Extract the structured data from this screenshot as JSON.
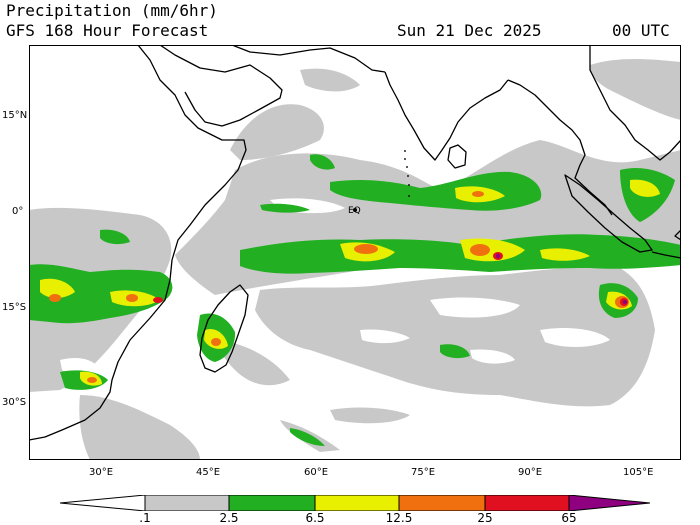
{
  "header": {
    "title": "Precipitation (mm/6hr)",
    "subtitle": "GFS 168 Hour Forecast",
    "date": "Sun 21 Dec 2025",
    "time": "00 UTC"
  },
  "map": {
    "region": "Indian Ocean",
    "lon_range": [
      20,
      110
    ],
    "lat_range": [
      -40,
      25
    ],
    "lat_labels": [
      "15°N",
      "0°",
      "15°S",
      "30°S"
    ],
    "lon_labels": [
      "30°E",
      "45°E",
      "60°E",
      "75°E",
      "90°E",
      "105°E"
    ],
    "eq_label": "EQ",
    "colors": {
      "land_outline": "#000000",
      "light": "#c8c8c8",
      "green": "#22b022",
      "yellow": "#e8f000",
      "orange": "#f07010",
      "red": "#e01020",
      "purple": "#8e0080"
    }
  },
  "legend": {
    "labels": [
      ".1",
      "2.5",
      "6.5",
      "12.5",
      "25",
      "65"
    ],
    "colors": [
      "#c8c8c8",
      "#22b022",
      "#e8f000",
      "#f07010",
      "#e01020"
    ]
  }
}
